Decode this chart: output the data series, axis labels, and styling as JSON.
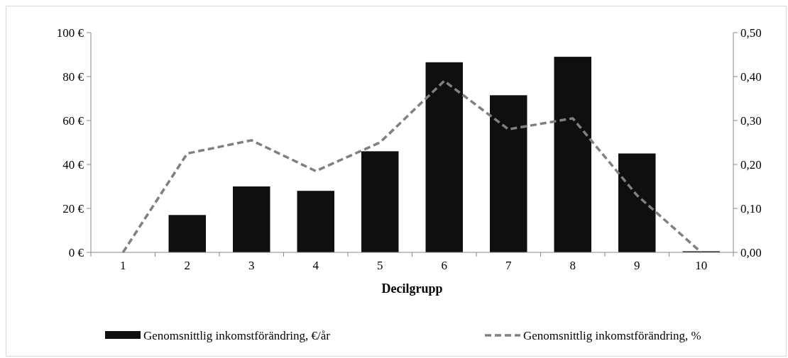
{
  "chart_data": {
    "type": "bar",
    "xlabel": "Decilgrupp",
    "categories": [
      "1",
      "2",
      "3",
      "4",
      "5",
      "6",
      "7",
      "8",
      "9",
      "10"
    ],
    "series": [
      {
        "name": "Genomsnittlig inkomstförändring, €/år",
        "color": "#0f0f0f",
        "values": [
          0,
          17,
          30,
          28,
          46,
          86.5,
          71.5,
          89,
          45,
          0.5
        ]
      },
      {
        "name": "Genomsnittlig inkomstförändring, %",
        "type": "line",
        "axis": "y2",
        "color": "#808080",
        "line_style": "dashed",
        "values": [
          0,
          0.225,
          0.255,
          0.185,
          0.25,
          0.39,
          0.28,
          0.305,
          0.13,
          0
        ]
      }
    ],
    "ylim": [
      0,
      100
    ],
    "yticks": [
      {
        "value": 0,
        "label": "0 €"
      },
      {
        "value": 20,
        "label": "20 €"
      },
      {
        "value": 40,
        "label": "40 €"
      },
      {
        "value": 60,
        "label": "60 €"
      },
      {
        "value": 80,
        "label": "80 €"
      },
      {
        "value": 100,
        "label": "100 €"
      }
    ],
    "y2lim": [
      0,
      0.5
    ],
    "y2ticks": [
      {
        "value": 0,
        "label": "0,00"
      },
      {
        "value": 0.1,
        "label": "0,10"
      },
      {
        "value": 0.2,
        "label": "0,20"
      },
      {
        "value": 0.3,
        "label": "0,30"
      },
      {
        "value": 0.4,
        "label": "0,40"
      },
      {
        "value": 0.5,
        "label": "0,50"
      }
    ],
    "legend": "bottom"
  }
}
